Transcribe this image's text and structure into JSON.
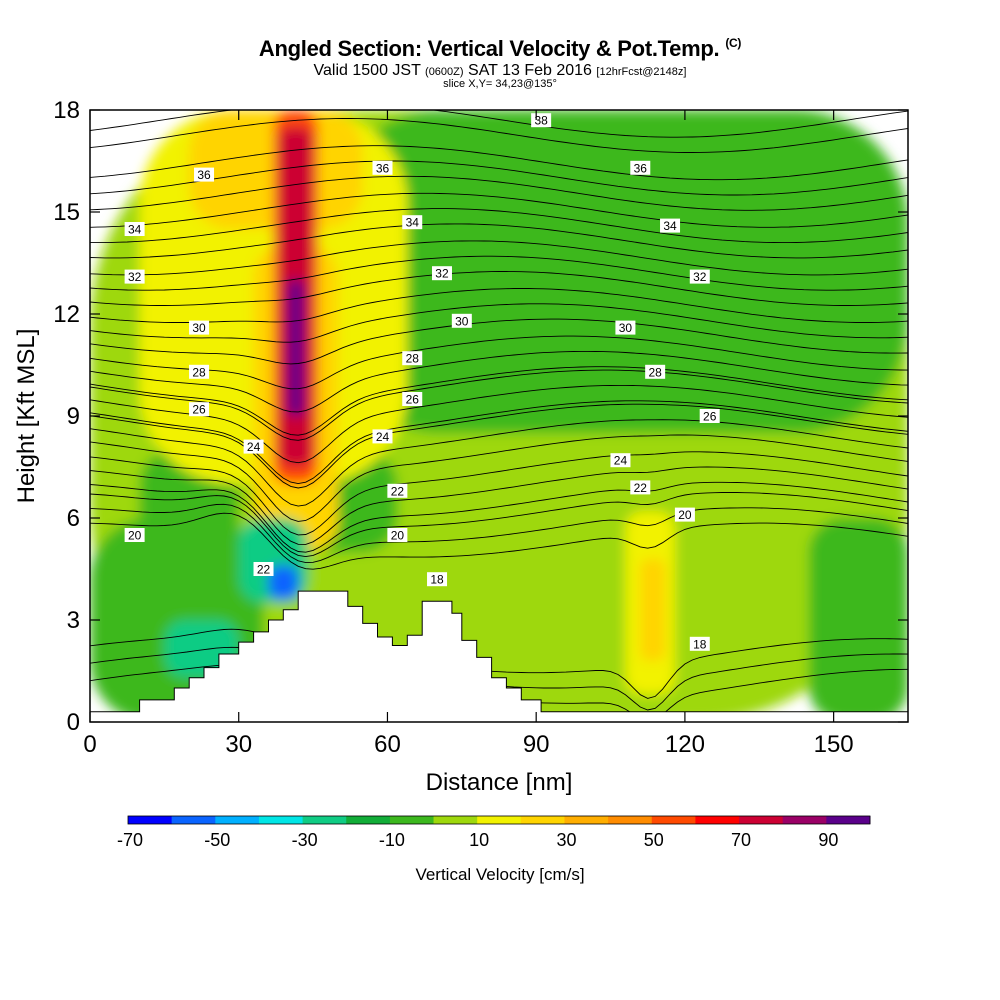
{
  "header": {
    "title": "Angled Section: Vertical Velocity & Pot.Temp.",
    "title_unit": "(C)",
    "valid_a": "Valid 1500 JST",
    "valid_z": "(0600Z)",
    "valid_b": "SAT 13 Feb 2016",
    "fcst": "[12hrFcst@2148z]",
    "slice": "slice X,Y= 34,23@135°"
  },
  "chart_data": {
    "type": "heatmap",
    "xlabel": "Distance [nm]",
    "ylabel": "Height [Kft MSL]",
    "xlim": [
      0,
      165
    ],
    "ylim": [
      0,
      18
    ],
    "x_ticks": [
      0,
      30,
      60,
      90,
      120,
      150
    ],
    "y_ticks": [
      0,
      3,
      6,
      9,
      12,
      15,
      18
    ],
    "colorbar": {
      "label": "Vertical Velocity [cm/s]",
      "tick_labels": [
        "-70",
        "-50",
        "-30",
        "-10",
        "10",
        "30",
        "50",
        "70",
        "90"
      ],
      "bounds": [
        -70,
        100
      ],
      "step": 10,
      "colors": [
        "#0000ff",
        "#0a64ff",
        "#00b0ff",
        "#00e6e6",
        "#10cc84",
        "#12ad38",
        "#3cb81e",
        "#9ed80d",
        "#f2f200",
        "#ffd400",
        "#ffae00",
        "#ff8c00",
        "#ff4a00",
        "#ff0000",
        "#cc0033",
        "#9a0066",
        "#5a008a"
      ]
    },
    "series": [
      {
        "name": "Vertical Velocity [cm/s]",
        "cells": [
          {
            "x0": 0,
            "x1": 165,
            "y0": 0,
            "y1": 18,
            "value": 5
          },
          {
            "x0": 48,
            "x1": 165,
            "y0": 8.5,
            "y1": 18,
            "value": -5
          },
          {
            "x0": 85,
            "x1": 120,
            "y0": 12,
            "y1": 18,
            "value": -8
          },
          {
            "x0": 0,
            "x1": 35,
            "y0": 0,
            "y1": 6,
            "value": -8
          },
          {
            "x0": 10,
            "x1": 30,
            "y0": 3,
            "y1": 8,
            "value": -5
          },
          {
            "x0": 145,
            "x1": 165,
            "y0": 0,
            "y1": 6,
            "value": -5
          },
          {
            "x0": 40,
            "x1": 62,
            "y0": 5,
            "y1": 8,
            "value": -8
          },
          {
            "x0": 10,
            "x1": 64,
            "y0": 7,
            "y1": 18,
            "value": 15
          },
          {
            "x0": 20,
            "x1": 55,
            "y0": 14.5,
            "y1": 18,
            "value": 25
          },
          {
            "x0": 33,
            "x1": 50,
            "y0": 5,
            "y1": 14,
            "value": 25
          },
          {
            "x0": 37,
            "x1": 46,
            "y0": 7,
            "y1": 18,
            "value": 55
          },
          {
            "x0": 38,
            "x1": 45,
            "y0": 7.5,
            "y1": 17.5,
            "value": 75
          },
          {
            "x0": 40,
            "x1": 43,
            "y0": 9,
            "y1": 13,
            "value": 95
          },
          {
            "x0": 108,
            "x1": 118,
            "y0": 0.8,
            "y1": 6.2,
            "value": 15
          },
          {
            "x0": 111,
            "x1": 116,
            "y0": 1.8,
            "y1": 4.8,
            "value": 25
          },
          {
            "x0": 30,
            "x1": 44,
            "y0": 3.5,
            "y1": 6,
            "value": -30
          },
          {
            "x0": 36,
            "x1": 42,
            "y0": 3.6,
            "y1": 4.6,
            "value": -55
          },
          {
            "x0": 15,
            "x1": 30,
            "y0": 1.3,
            "y1": 3,
            "value": -30
          }
        ]
      },
      {
        "name": "Pot.Temp. (C)",
        "contour_heights_kft": [
          {
            "level": 18,
            "y": 1.5
          },
          {
            "level": 20,
            "y": 5.8
          },
          {
            "level": 22,
            "y": 7
          },
          {
            "level": 24,
            "y": 8.4
          },
          {
            "level": 26,
            "y": 9.4
          },
          {
            "level": 28,
            "y": 10.4
          },
          {
            "level": 30,
            "y": 11.8
          },
          {
            "level": 32,
            "y": 13.2
          },
          {
            "level": 34,
            "y": 14.6
          },
          {
            "level": 36,
            "y": 16
          },
          {
            "level": 38,
            "y": 17.7
          }
        ]
      }
    ],
    "contour_labels": [
      {
        "text": "38",
        "x": 91,
        "y": 17.7
      },
      {
        "text": "36",
        "x": 23,
        "y": 16.1
      },
      {
        "text": "36",
        "x": 59,
        "y": 16.3
      },
      {
        "text": "36",
        "x": 111,
        "y": 16.3
      },
      {
        "text": "34",
        "x": 9,
        "y": 14.5
      },
      {
        "text": "34",
        "x": 65,
        "y": 14.7
      },
      {
        "text": "34",
        "x": 117,
        "y": 14.6
      },
      {
        "text": "32",
        "x": 9,
        "y": 13.1
      },
      {
        "text": "32",
        "x": 71,
        "y": 13.2
      },
      {
        "text": "32",
        "x": 123,
        "y": 13.1
      },
      {
        "text": "30",
        "x": 22,
        "y": 11.6
      },
      {
        "text": "30",
        "x": 75,
        "y": 11.8
      },
      {
        "text": "30",
        "x": 108,
        "y": 11.6
      },
      {
        "text": "28",
        "x": 22,
        "y": 10.3
      },
      {
        "text": "28",
        "x": 65,
        "y": 10.7
      },
      {
        "text": "28",
        "x": 114,
        "y": 10.3
      },
      {
        "text": "26",
        "x": 22,
        "y": 9.2
      },
      {
        "text": "26",
        "x": 65,
        "y": 9.5
      },
      {
        "text": "26",
        "x": 125,
        "y": 9.0
      },
      {
        "text": "24",
        "x": 33,
        "y": 8.1
      },
      {
        "text": "24",
        "x": 59,
        "y": 8.4
      },
      {
        "text": "24",
        "x": 107,
        "y": 7.7
      },
      {
        "text": "22",
        "x": 62,
        "y": 6.8
      },
      {
        "text": "22",
        "x": 111,
        "y": 6.9
      },
      {
        "text": "22",
        "x": 35,
        "y": 4.5
      },
      {
        "text": "20",
        "x": 9,
        "y": 5.5
      },
      {
        "text": "20",
        "x": 62,
        "y": 5.5
      },
      {
        "text": "20",
        "x": 120,
        "y": 6.1
      },
      {
        "text": "18",
        "x": 70,
        "y": 4.2
      },
      {
        "text": "18",
        "x": 123,
        "y": 2.3
      }
    ],
    "terrain": [
      [
        0,
        0.3
      ],
      [
        10,
        0.3
      ],
      [
        10,
        0.65
      ],
      [
        17,
        0.65
      ],
      [
        17,
        1
      ],
      [
        20,
        1
      ],
      [
        20,
        1.3
      ],
      [
        23,
        1.3
      ],
      [
        23,
        1.6
      ],
      [
        26,
        1.6
      ],
      [
        26,
        2
      ],
      [
        30,
        2
      ],
      [
        30,
        2.35
      ],
      [
        33,
        2.35
      ],
      [
        33,
        2.65
      ],
      [
        36,
        2.65
      ],
      [
        36,
        3
      ],
      [
        39,
        3
      ],
      [
        39,
        3.3
      ],
      [
        42,
        3.3
      ],
      [
        42,
        3.85
      ],
      [
        52,
        3.85
      ],
      [
        52,
        3.4
      ],
      [
        55,
        3.4
      ],
      [
        55,
        2.9
      ],
      [
        58,
        2.9
      ],
      [
        58,
        2.5
      ],
      [
        61,
        2.5
      ],
      [
        61,
        2.25
      ],
      [
        64,
        2.25
      ],
      [
        64,
        2.55
      ],
      [
        67,
        2.55
      ],
      [
        67,
        3.55
      ],
      [
        73,
        3.55
      ],
      [
        73,
        3.2
      ],
      [
        75,
        3.2
      ],
      [
        75,
        2.4
      ],
      [
        78,
        2.4
      ],
      [
        78,
        1.9
      ],
      [
        81,
        1.9
      ],
      [
        81,
        1.3
      ],
      [
        84,
        1.3
      ],
      [
        84,
        1
      ],
      [
        87,
        1
      ],
      [
        87,
        0.65
      ],
      [
        91,
        0.65
      ],
      [
        91,
        0.3
      ],
      [
        165,
        0.3
      ]
    ]
  }
}
